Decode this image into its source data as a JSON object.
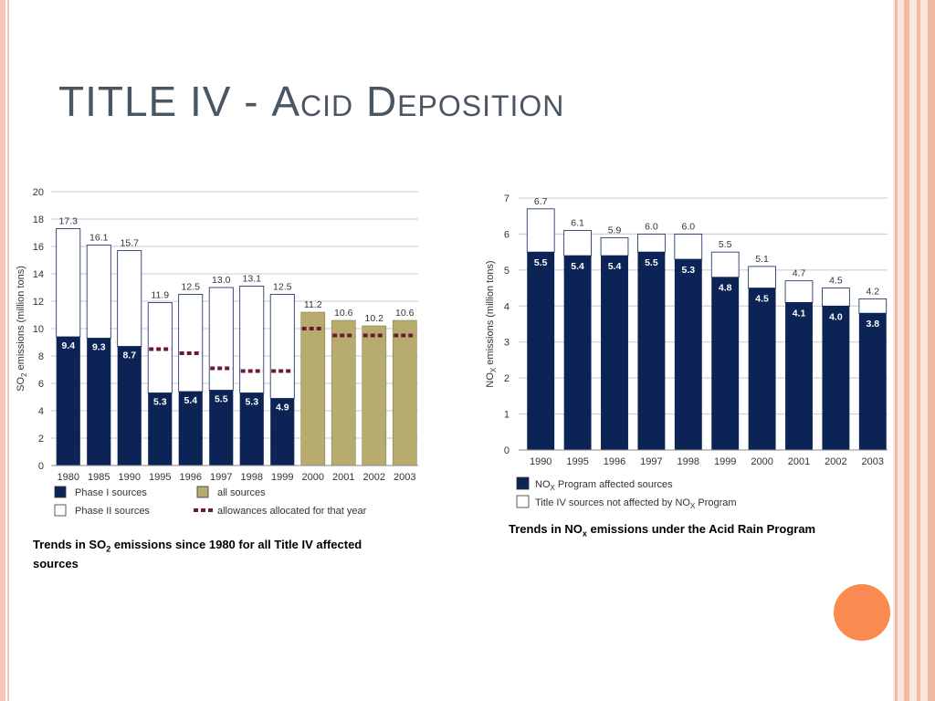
{
  "slide": {
    "title_main": "TITLE IV - ",
    "title_sc": "Acid Deposition"
  },
  "colors": {
    "navy": "#0c2356",
    "white_bar": "#ffffff",
    "olive": "#b7ab6e",
    "allowance": "#6b1a36",
    "accent_circle": "#fb8a50"
  },
  "captions": {
    "so2_prefix": "Trends in SO",
    "so2_sub": "2",
    "so2_suffix": " emissions since 1980 for all Title IV affected",
    "so2_line2": "sources",
    "nox_prefix": "Trends in NO",
    "nox_sub": "x",
    "nox_suffix": " emissions under the Acid Rain Program"
  },
  "chart_data": [
    {
      "type": "bar",
      "ylabel": "SO2 emissions (million tons)",
      "ylim": [
        0,
        20
      ],
      "yticks": [
        0,
        2,
        4,
        6,
        8,
        10,
        12,
        14,
        16,
        18,
        20
      ],
      "categories": [
        "1980",
        "1985",
        "1990",
        "1995",
        "1996",
        "1997",
        "1998",
        "1999",
        "2000",
        "2001",
        "2002",
        "2003"
      ],
      "series": [
        {
          "name": "Phase I sources",
          "values": [
            9.4,
            9.3,
            8.7,
            5.3,
            5.4,
            5.5,
            5.3,
            4.9,
            null,
            null,
            null,
            null
          ]
        },
        {
          "name": "Phase II sources",
          "values": [
            7.9,
            6.8,
            7.0,
            6.6,
            7.1,
            7.5,
            7.8,
            7.6,
            null,
            null,
            null,
            null
          ]
        },
        {
          "name": "all sources",
          "values": [
            null,
            null,
            null,
            null,
            null,
            null,
            null,
            null,
            11.2,
            10.6,
            10.2,
            10.6
          ]
        },
        {
          "name": "allowances allocated for that year",
          "values": [
            null,
            null,
            null,
            8.5,
            8.2,
            7.1,
            6.9,
            6.9,
            10.0,
            9.5,
            9.5,
            9.5
          ]
        }
      ],
      "totals": [
        17.3,
        16.1,
        15.7,
        11.9,
        12.5,
        13.0,
        13.1,
        12.5,
        11.2,
        10.6,
        10.2,
        10.6
      ],
      "legend": [
        "Phase I sources",
        "all sources",
        "Phase II sources",
        "allowances allocated for that year"
      ],
      "grid": true
    },
    {
      "type": "bar",
      "ylabel": "NOX emissions (million tons)",
      "ylim": [
        0,
        7
      ],
      "yticks": [
        0,
        1,
        2,
        3,
        4,
        5,
        6,
        7
      ],
      "categories": [
        "1990",
        "1995",
        "1996",
        "1997",
        "1998",
        "1999",
        "2000",
        "2001",
        "2002",
        "2003"
      ],
      "series": [
        {
          "name": "NOX Program affected sources",
          "values": [
            5.5,
            5.4,
            5.4,
            5.5,
            5.3,
            4.8,
            4.5,
            4.1,
            4.0,
            3.8
          ]
        },
        {
          "name": "Title IV sources not affected by NOX Program",
          "values": [
            1.2,
            0.7,
            0.5,
            0.5,
            0.7,
            0.7,
            0.6,
            0.6,
            0.5,
            0.4
          ]
        }
      ],
      "totals": [
        6.7,
        6.1,
        5.9,
        6.0,
        6.0,
        5.5,
        5.1,
        4.7,
        4.5,
        4.2
      ],
      "legend": [
        "NOX Program affected sources",
        "Title IV sources not affected by NOX Program"
      ],
      "grid": true
    }
  ]
}
